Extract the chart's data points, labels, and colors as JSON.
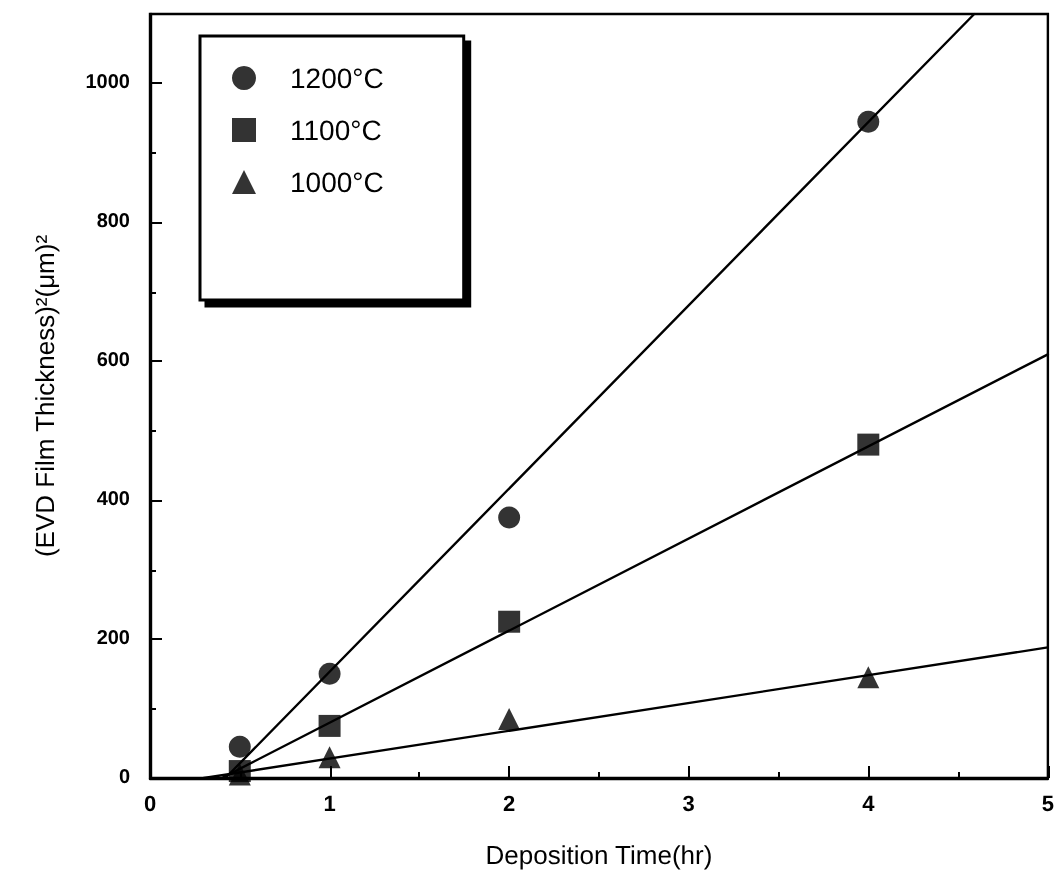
{
  "chart_data": {
    "type": "scatter",
    "xlabel": "Deposition Time(hr)",
    "ylabel": "(EVD Film Thickness)²(μm)²",
    "xlim": [
      0,
      5
    ],
    "xticks": [
      0,
      1,
      2,
      3,
      4,
      5
    ],
    "ylim": [
      0,
      1100
    ],
    "yticks": [
      0,
      200,
      400,
      600,
      800,
      1000
    ],
    "grid": false,
    "legend": "top left",
    "series": [
      {
        "name": "1200°C",
        "marker": "circle",
        "color": "#000000",
        "x": [
          0.5,
          1,
          2,
          4
        ],
        "values": [
          45,
          150,
          375,
          945
        ]
      },
      {
        "name": "1100°C",
        "marker": "square",
        "color": "#000000",
        "x": [
          0.5,
          1,
          2,
          4
        ],
        "values": [
          10,
          75,
          225,
          480
        ]
      },
      {
        "name": "1000°C",
        "marker": "triangle",
        "color": "#000000",
        "x": [
          0.5,
          1,
          2,
          4
        ],
        "values": [
          5,
          30,
          85,
          145
        ]
      },
      {
        "type": "line",
        "marker": "none",
        "line_style": "solid",
        "color": "#000000",
        "x": [
          0.42,
          4.59
        ],
        "values": [
          0,
          1100
        ]
      },
      {
        "type": "line",
        "marker": "none",
        "line_style": "solid",
        "color": "#000000",
        "x": [
          0.4,
          5
        ],
        "values": [
          0,
          610
        ]
      },
      {
        "type": "line",
        "marker": "none",
        "line_style": "solid",
        "color": "#000000",
        "x": [
          0.3,
          5
        ],
        "values": [
          0,
          188
        ]
      }
    ]
  }
}
